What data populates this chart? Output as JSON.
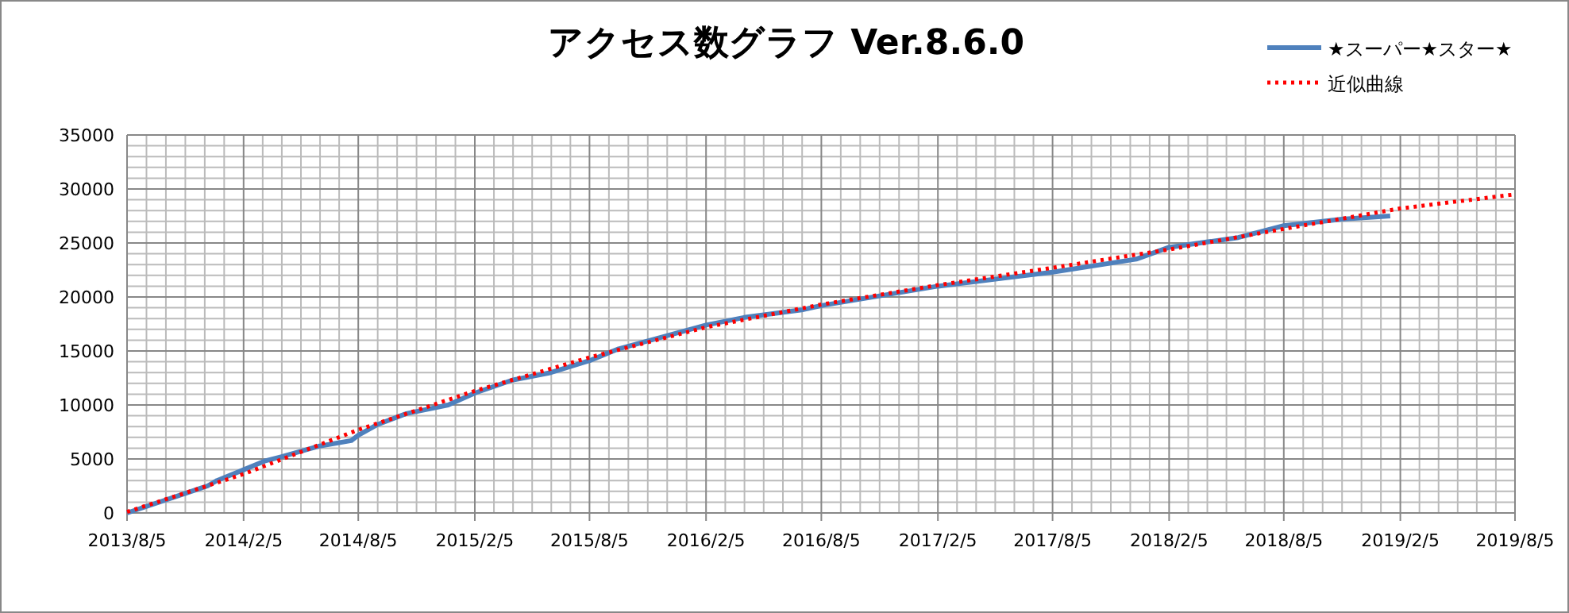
{
  "chart_data": {
    "type": "line",
    "title": "アクセス数グラフ Ver.8.6.0",
    "series": [
      {
        "name": "★スーパー★スター★",
        "color": "#4f81bd",
        "line_style": "solid",
        "x": [
          "2013-08-05",
          "2013-12-10",
          "2013-12-25",
          "2014-02-05",
          "2014-03-10",
          "2014-04-05",
          "2014-06-05",
          "2014-07-25",
          "2014-08-05",
          "2014-09-05",
          "2014-10-20",
          "2014-12-25",
          "2015-02-05",
          "2015-04-05",
          "2015-06-05",
          "2015-08-05",
          "2015-09-20",
          "2015-12-05",
          "2016-02-05",
          "2016-04-05",
          "2016-07-05",
          "2016-08-05",
          "2017-02-05",
          "2017-08-05",
          "2017-12-15",
          "2018-02-05",
          "2018-05-25",
          "2018-08-05",
          "2018-11-05",
          "2019-01-20"
        ],
        "values": [
          0,
          2500,
          3000,
          4000,
          4800,
          5200,
          6200,
          6700,
          7200,
          8200,
          9200,
          10000,
          11100,
          12300,
          13000,
          14100,
          15200,
          16400,
          17400,
          18100,
          18800,
          19200,
          21000,
          22300,
          23500,
          24600,
          25500,
          26600,
          27200,
          27500
        ]
      },
      {
        "name": "近似曲線",
        "color": "#ff0000",
        "line_style": "dotted",
        "x": [
          "2013-08-05",
          "2014-02-05",
          "2014-08-05",
          "2015-02-05",
          "2015-08-05",
          "2016-02-05",
          "2016-08-05",
          "2017-02-05",
          "2017-08-05",
          "2018-02-05",
          "2018-08-05",
          "2019-02-05",
          "2019-08-05"
        ],
        "values": [
          100,
          3600,
          7700,
          11300,
          14400,
          17200,
          19300,
          21100,
          22700,
          24400,
          26300,
          28200,
          29500
        ]
      }
    ],
    "xlim": [
      "2013-08-05",
      "2019-08-05"
    ],
    "xticks": [
      {
        "value": "2013-08-05",
        "label": "2013/8/5"
      },
      {
        "value": "2014-02-05",
        "label": "2014/2/5"
      },
      {
        "value": "2014-08-05",
        "label": "2014/8/5"
      },
      {
        "value": "2015-02-05",
        "label": "2015/2/5"
      },
      {
        "value": "2015-08-05",
        "label": "2015/8/5"
      },
      {
        "value": "2016-02-05",
        "label": "2016/2/5"
      },
      {
        "value": "2016-08-05",
        "label": "2016/8/5"
      },
      {
        "value": "2017-02-05",
        "label": "2017/2/5"
      },
      {
        "value": "2017-08-05",
        "label": "2017/8/5"
      },
      {
        "value": "2018-02-05",
        "label": "2018/2/5"
      },
      {
        "value": "2018-08-05",
        "label": "2018/8/5"
      },
      {
        "value": "2019-02-05",
        "label": "2019/2/5"
      },
      {
        "value": "2019-08-05",
        "label": "2019/8/5"
      }
    ],
    "ylim": [
      0,
      35000
    ],
    "yticks": [
      0,
      5000,
      10000,
      15000,
      20000,
      25000,
      30000,
      35000
    ],
    "grid": true,
    "legend": "top right",
    "marker": "none"
  }
}
